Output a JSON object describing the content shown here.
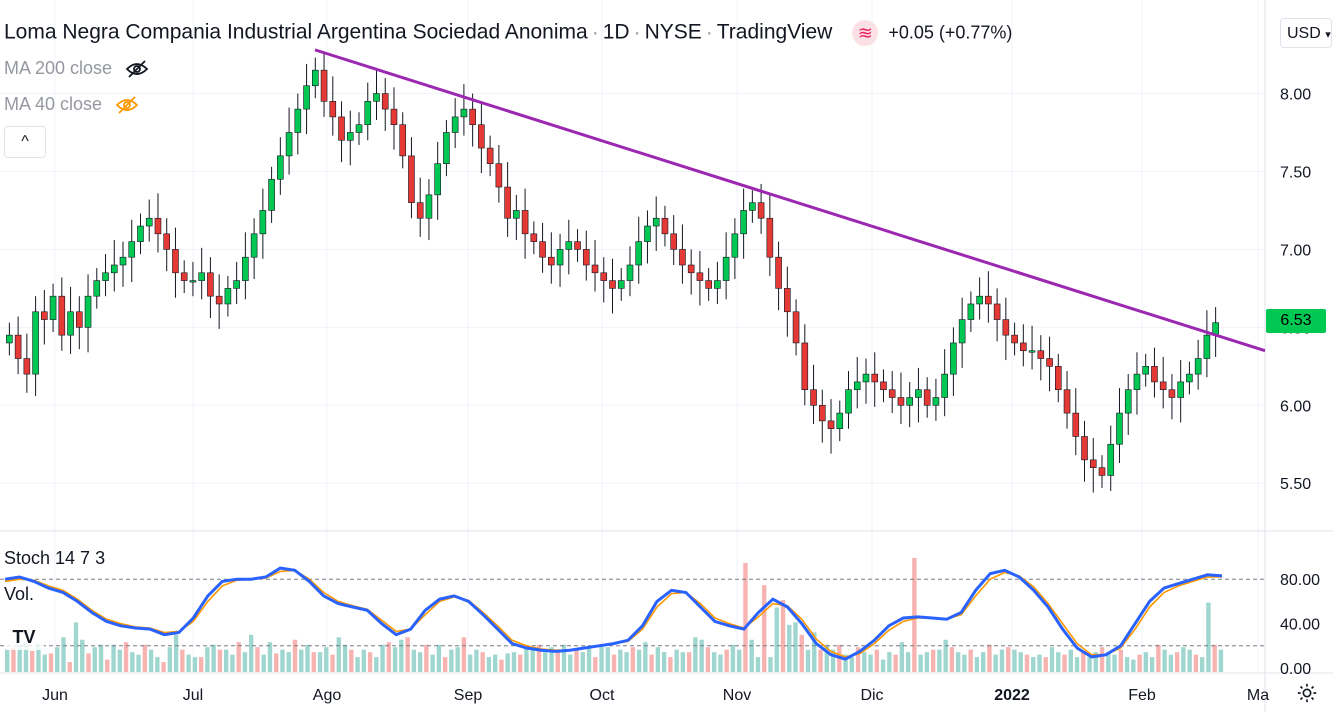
{
  "header": {
    "symbol_name": "Loma Negra Compania Industrial Argentina Sociedad Anonima",
    "interval": "1D",
    "exchange": "NYSE",
    "source": "TradingView",
    "change": "+0.05 (+0.77%)"
  },
  "indicators": {
    "ma200": "MA 200 close",
    "ma40": "MA 40 close",
    "stoch": "Stoch 14 7 3",
    "vol": "Vol."
  },
  "currency_button": "USD",
  "price_tag": "6.53",
  "colors": {
    "up": "#26a69a",
    "down": "#ef5350",
    "candle_up": "#00c853",
    "candle_down": "#e53935",
    "trendline": "#9c27b0",
    "stoch_k": "#2962ff",
    "stoch_d": "#ff9800",
    "price_tag": "#00c853"
  },
  "chart_data": [
    {
      "type": "candlestick",
      "ylim": [
        5.2,
        8.6
      ],
      "y_ticks": [
        8.0,
        7.5,
        7.0,
        6.5,
        6.0,
        5.5
      ],
      "y_tick_labels": [
        "8.00",
        "7.50",
        "7.00",
        "6.50",
        "6.00",
        "5.50"
      ],
      "x_ticks": [
        "Jun",
        "Jul",
        "Ago",
        "Sep",
        "Oct",
        "Nov",
        "Dic",
        "2022",
        "Feb",
        "Ma"
      ],
      "close_series": [
        6.45,
        6.3,
        6.2,
        6.6,
        6.55,
        6.7,
        6.45,
        6.6,
        6.5,
        6.7,
        6.8,
        6.85,
        6.9,
        6.95,
        7.05,
        7.15,
        7.2,
        7.1,
        7.0,
        6.85,
        6.8,
        6.8,
        6.85,
        6.7,
        6.65,
        6.75,
        6.8,
        6.95,
        7.1,
        7.25,
        7.45,
        7.6,
        7.75,
        7.9,
        8.05,
        8.15,
        7.95,
        7.85,
        7.7,
        7.75,
        7.8,
        7.95,
        8.0,
        7.9,
        7.8,
        7.6,
        7.3,
        7.2,
        7.35,
        7.55,
        7.75,
        7.85,
        7.9,
        7.8,
        7.65,
        7.55,
        7.4,
        7.2,
        7.25,
        7.1,
        7.05,
        6.95,
        6.9,
        7.0,
        7.05,
        7.0,
        6.9,
        6.85,
        6.8,
        6.75,
        6.8,
        6.9,
        7.05,
        7.15,
        7.2,
        7.1,
        7.0,
        6.9,
        6.85,
        6.8,
        6.75,
        6.8,
        6.95,
        7.1,
        7.25,
        7.3,
        7.2,
        6.95,
        6.75,
        6.6,
        6.4,
        6.1,
        6.0,
        5.9,
        5.85,
        5.95,
        6.1,
        6.15,
        6.2,
        6.15,
        6.1,
        6.05,
        6.0,
        6.05,
        6.1,
        6.0,
        6.05,
        6.2,
        6.4,
        6.55,
        6.65,
        6.7,
        6.65,
        6.55,
        6.45,
        6.4,
        6.35,
        6.35,
        6.3,
        6.25,
        6.1,
        5.95,
        5.8,
        5.65,
        5.6,
        5.55,
        5.75,
        5.95,
        6.1,
        6.2,
        6.25,
        6.15,
        6.1,
        6.05,
        6.15,
        6.2,
        6.3,
        6.45,
        6.53
      ],
      "trendline": {
        "from": {
          "date": "Ago",
          "value": 8.28
        },
        "to": {
          "date": "Ma",
          "value": 6.35
        }
      }
    },
    {
      "type": "line",
      "title": "Stoch 14 7 3",
      "ylim": [
        0,
        100
      ],
      "y_tick_labels": [
        "80.00",
        "40.00",
        "0.00"
      ],
      "y_ticks": [
        80,
        40,
        0
      ],
      "bands": [
        80,
        20
      ],
      "series": [
        {
          "values": [
            80,
            82,
            78,
            72,
            68,
            60,
            50,
            42,
            38,
            36,
            35,
            30,
            32,
            45,
            65,
            78,
            80,
            80,
            82,
            90,
            88,
            78,
            65,
            58,
            55,
            52,
            40,
            30,
            35,
            52,
            62,
            65,
            60,
            48,
            35,
            22,
            18,
            16,
            15,
            16,
            18,
            20,
            22,
            25,
            38,
            60,
            70,
            68,
            55,
            42,
            38,
            35,
            50,
            62,
            55,
            40,
            22,
            12,
            8,
            15,
            25,
            38,
            45,
            46,
            45,
            44,
            50,
            70,
            85,
            88,
            82,
            70,
            55,
            35,
            18,
            10,
            12,
            20,
            40,
            60,
            72,
            76,
            80,
            84,
            83
          ]
        },
        {
          "values": [
            78,
            80,
            79,
            74,
            70,
            62,
            52,
            44,
            40,
            37,
            36,
            32,
            33,
            42,
            60,
            74,
            79,
            80,
            81,
            87,
            88,
            80,
            68,
            60,
            56,
            53,
            43,
            33,
            35,
            48,
            60,
            64,
            61,
            50,
            38,
            25,
            20,
            17,
            16,
            16,
            18,
            20,
            22,
            24,
            35,
            55,
            67,
            68,
            58,
            45,
            40,
            36,
            46,
            58,
            56,
            44,
            26,
            15,
            10,
            13,
            22,
            34,
            42,
            45,
            45,
            44,
            48,
            65,
            80,
            86,
            83,
            73,
            58,
            40,
            22,
            12,
            12,
            18,
            35,
            55,
            68,
            74,
            78,
            82,
            82
          ]
        }
      ]
    },
    {
      "type": "bar",
      "title": "Vol.",
      "values": [
        18,
        20,
        22,
        24,
        17,
        23,
        14,
        15,
        20,
        28,
        8,
        40,
        26,
        15,
        20,
        22,
        10,
        22,
        18,
        24,
        16,
        14,
        22,
        18,
        12,
        8,
        20,
        30,
        18,
        14,
        12,
        12,
        20,
        22,
        18,
        18,
        14,
        24,
        16,
        30,
        20,
        14,
        24,
        15,
        18,
        16,
        26,
        18,
        22,
        16,
        16,
        20,
        14,
        28,
        22,
        18,
        12,
        18,
        16,
        12,
        22,
        24,
        20,
        26,
        28,
        18,
        16,
        22,
        14,
        22,
        12,
        18,
        20,
        28,
        14,
        18,
        16,
        12,
        14,
        10,
        15,
        16,
        14,
        20,
        18,
        22,
        16,
        20,
        18,
        22,
        14,
        18,
        16,
        20,
        12,
        22,
        20,
        14,
        18,
        16,
        20,
        18,
        24,
        14,
        20,
        16,
        12,
        18,
        16,
        16,
        28,
        26,
        20,
        16,
        14,
        18,
        22,
        18,
        88,
        26,
        12,
        70,
        12,
        52,
        58,
        38,
        40,
        30,
        18,
        32,
        18,
        22,
        18,
        22,
        14,
        12,
        20,
        16,
        14,
        18,
        10,
        16,
        14,
        24,
        16,
        92,
        14,
        16,
        18,
        18,
        26,
        20,
        16,
        14,
        18,
        12,
        16,
        22,
        14,
        18,
        20,
        18,
        16,
        14,
        12,
        14,
        12,
        20,
        16,
        14,
        18,
        12,
        16,
        12,
        16,
        20,
        16,
        14,
        18,
        12,
        10,
        14,
        16,
        12,
        22,
        18,
        14,
        16,
        20,
        18,
        14,
        12,
        56,
        22,
        18
      ]
    }
  ]
}
